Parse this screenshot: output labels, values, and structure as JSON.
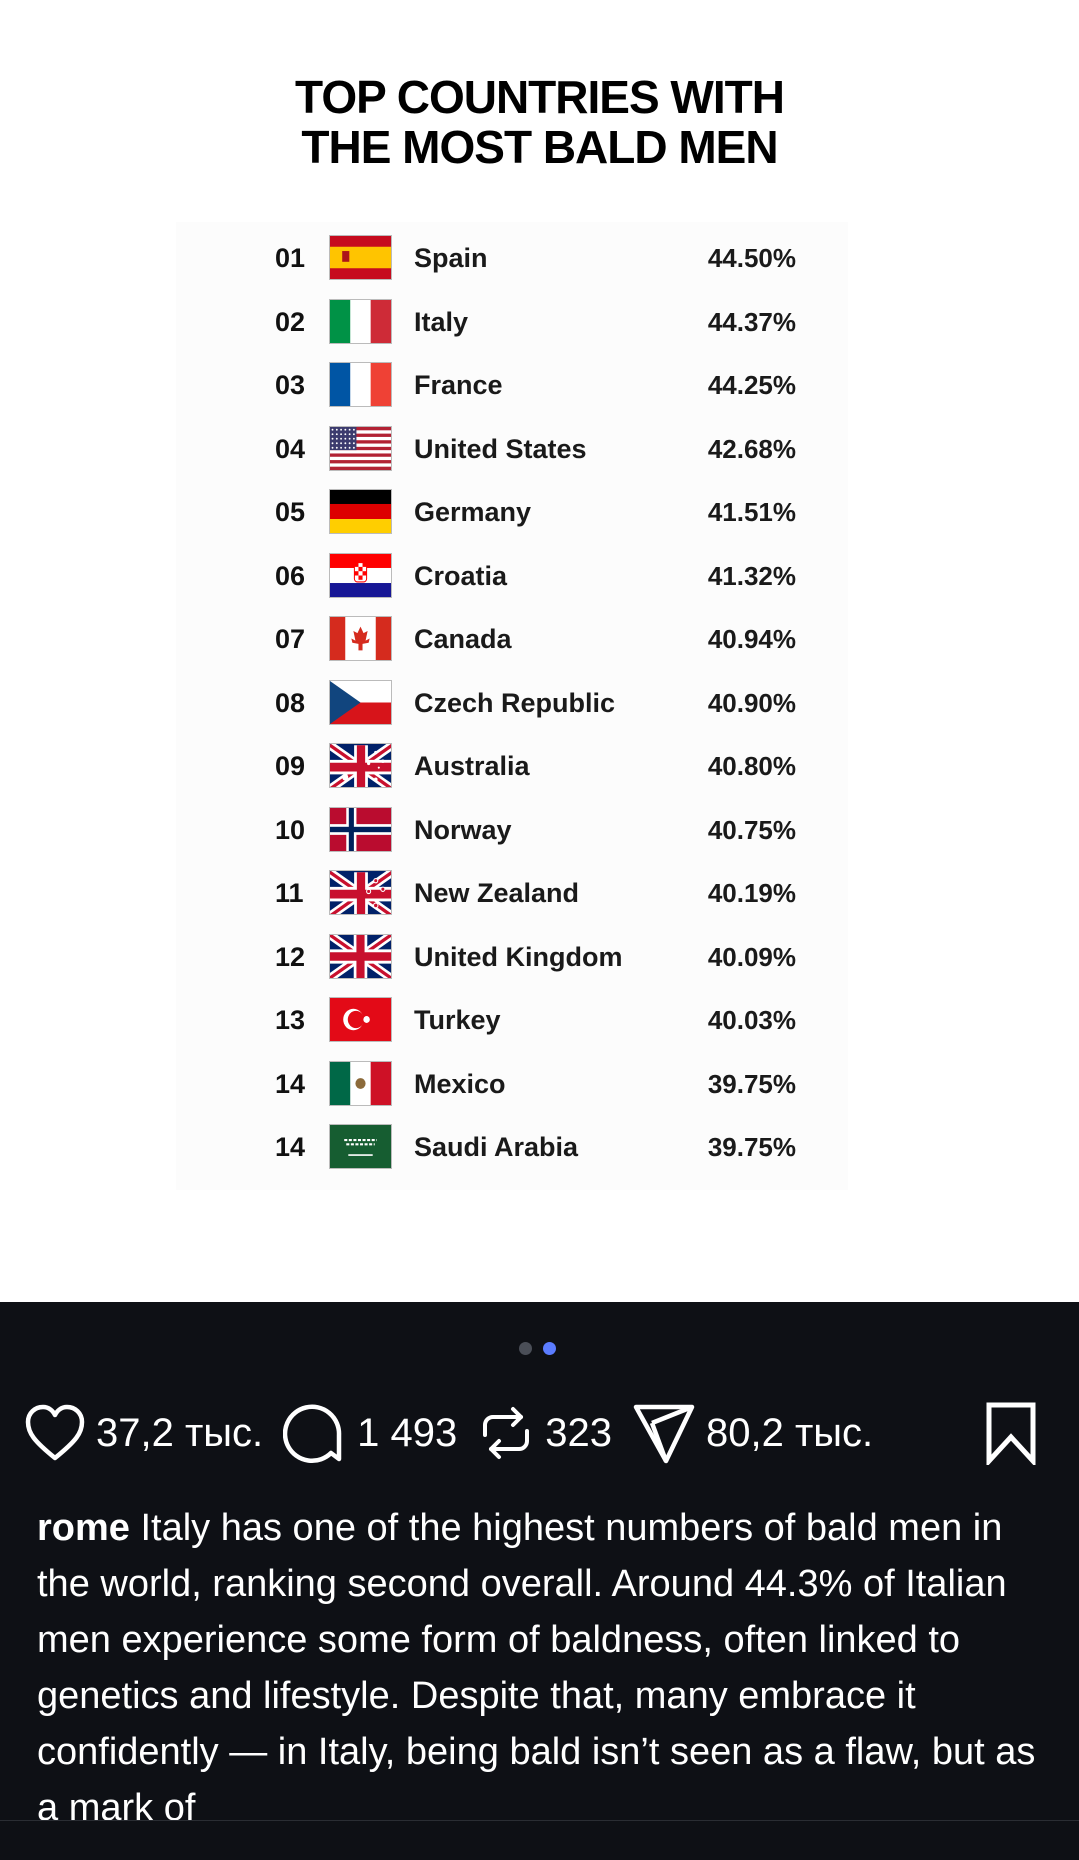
{
  "post": {
    "title_line1": "TOP COUNTRIES WITH",
    "title_line2": "THE MOST BALD MEN",
    "ranking": [
      {
        "rank": "01",
        "flag": "flag-spain",
        "country": "Spain",
        "percent": "44.50%"
      },
      {
        "rank": "02",
        "flag": "flag-italy",
        "country": "Italy",
        "percent": "44.37%"
      },
      {
        "rank": "03",
        "flag": "flag-france",
        "country": "France",
        "percent": "44.25%"
      },
      {
        "rank": "04",
        "flag": "flag-united-states",
        "country": "United States",
        "percent": "42.68%"
      },
      {
        "rank": "05",
        "flag": "flag-germany",
        "country": "Germany",
        "percent": "41.51%"
      },
      {
        "rank": "06",
        "flag": "flag-croatia",
        "country": "Croatia",
        "percent": "41.32%"
      },
      {
        "rank": "07",
        "flag": "flag-canada",
        "country": "Canada",
        "percent": "40.94%"
      },
      {
        "rank": "08",
        "flag": "flag-czech-republic",
        "country": "Czech Republic",
        "percent": "40.90%"
      },
      {
        "rank": "09",
        "flag": "flag-australia",
        "country": "Australia",
        "percent": "40.80%"
      },
      {
        "rank": "10",
        "flag": "flag-norway",
        "country": "Norway",
        "percent": "40.75%"
      },
      {
        "rank": "11",
        "flag": "flag-new-zealand",
        "country": "New Zealand",
        "percent": "40.19%"
      },
      {
        "rank": "12",
        "flag": "flag-united-kingdom",
        "country": "United Kingdom",
        "percent": "40.09%"
      },
      {
        "rank": "13",
        "flag": "flag-turkey",
        "country": "Turkey",
        "percent": "40.03%"
      },
      {
        "rank": "14",
        "flag": "flag-mexico",
        "country": "Mexico",
        "percent": "39.75%"
      },
      {
        "rank": "14",
        "flag": "flag-saudi-arabia",
        "country": "Saudi Arabia",
        "percent": "39.75%"
      }
    ]
  },
  "carousel": {
    "count": 2,
    "active_index": 1,
    "active_color": "#5b7cff"
  },
  "actions": {
    "likes": "37,2 тыс.",
    "comments": "1 493",
    "reposts": "323",
    "shares": "80,2 тыс."
  },
  "caption": {
    "username": "rome",
    "text": "Italy has one of the highest numbers of bald men in the world, ranking second overall. Around 44.3% of Italian men experience some form of baldness, often linked to genetics and lifestyle. Despite that, many embrace it confidently — in Italy, being bald isn’t seen as a flaw, but as a mark of"
  },
  "colors": {
    "background_dark": "#0e1015",
    "text": "#ffffff"
  }
}
